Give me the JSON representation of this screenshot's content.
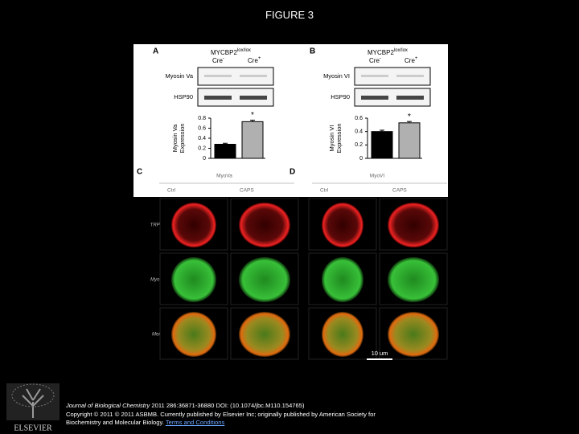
{
  "title": "FIGURE 3",
  "panels": [
    {
      "label": "A",
      "genotype": "MYCBP2",
      "genotype_sup": "lox/lox",
      "groups": [
        {
          "name": "Cre",
          "sup": "-"
        },
        {
          "name": "Cre",
          "sup": "+"
        }
      ],
      "blots": [
        "Myosin Va",
        "HSP90"
      ],
      "chart": {
        "type": "bar",
        "ylabel": [
          "Myosin Va",
          "Expression"
        ],
        "values": [
          0.28,
          0.73
        ],
        "errors": [
          0.02,
          0.03
        ],
        "colors": [
          "#000000",
          "#b0b0b0"
        ],
        "ylim": [
          0,
          0.8
        ],
        "yticks": [
          0,
          0.2,
          0.4,
          0.6,
          0.8
        ],
        "annotation": "*"
      }
    },
    {
      "label": "B",
      "genotype": "MYCBP2",
      "genotype_sup": "lox/lox",
      "groups": [
        {
          "name": "Cre",
          "sup": "-"
        },
        {
          "name": "Cre",
          "sup": "+"
        }
      ],
      "blots": [
        "Myosin VI",
        "HSP90"
      ],
      "chart": {
        "type": "bar",
        "ylabel": [
          "Myosin VI",
          "Expression"
        ],
        "values": [
          0.4,
          0.53
        ],
        "errors": [
          0.02,
          0.02
        ],
        "colors": [
          "#000000",
          "#b0b0b0"
        ],
        "ylim": [
          0,
          0.6
        ],
        "yticks": [
          0,
          0.2,
          0.4,
          0.6
        ],
        "annotation": "*"
      }
    }
  ],
  "images": [
    {
      "label": "C",
      "title": "MyoVa",
      "columns": [
        "Ctrl",
        "CAPS"
      ],
      "rows": [
        "TRPV1",
        "Myosin",
        "Merge"
      ]
    },
    {
      "label": "D",
      "title": "MyoVI",
      "columns": [
        "Ctrl",
        "CAPS"
      ],
      "scale_bar": "10 um"
    }
  ],
  "footer": {
    "journal": "Journal of Biological Chemistry",
    "citation": "2011 286:36871-36880 DOI: (10.1074/jbc.M110.154765)",
    "copyright": "Copyright © 2011 © 2011 ASBMB. Currently published by Elsevier Inc; originally published by American Society for Biochemistry and Molecular Biology.",
    "link": "Terms and Conditions"
  },
  "logo": "ELSEVIER"
}
